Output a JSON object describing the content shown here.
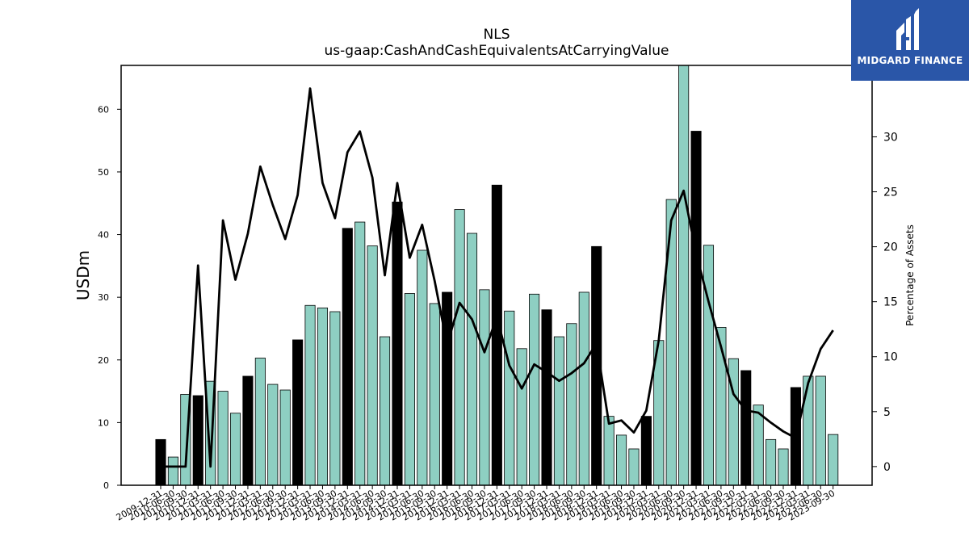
{
  "chart_data": {
    "type": "bar",
    "title": "NLS",
    "subtitle": "us-gaap:CashAndCashEquivalentsAtCarryingValue",
    "ylabel": "USDm",
    "y2label": "Percentage of Assets",
    "ylim": [
      0,
      67
    ],
    "y2lim": [
      -1.7,
      36.5
    ],
    "yticks": [
      0,
      10,
      20,
      30,
      40,
      50,
      60
    ],
    "y2ticks": [
      0,
      5,
      10,
      15,
      20,
      25,
      30
    ],
    "categories": [
      "2009-12-31",
      "2010-06-30",
      "2010-09-30",
      "2010-12-31",
      "2011-03-31",
      "2011-06-30",
      "2011-09-30",
      "2011-12-31",
      "2012-03-31",
      "2012-06-30",
      "2012-09-30",
      "2012-12-31",
      "2013-03-31",
      "2013-06-30",
      "2013-09-30",
      "2013-12-31",
      "2014-03-31",
      "2014-06-30",
      "2014-09-30",
      "2014-12-31",
      "2015-03-31",
      "2015-06-30",
      "2015-09-30",
      "2015-12-31",
      "2016-03-31",
      "2016-06-30",
      "2016-09-30",
      "2016-12-31",
      "2017-03-31",
      "2017-06-30",
      "2017-09-30",
      "2017-12-31",
      "2018-03-31",
      "2018-06-30",
      "2018-09-30",
      "2018-12-31",
      "2019-03-31",
      "2019-06-30",
      "2019-09-30",
      "2019-12-31",
      "2020-03-31",
      "2020-06-30",
      "2020-09-30",
      "2020-12-31",
      "2021-03-31",
      "2021-06-30",
      "2021-09-30",
      "2021-12-31",
      "2022-03-31",
      "2022-06-30",
      "2022-09-30",
      "2022-12-31",
      "2023-03-31",
      "2023-06-30",
      "2023-09-30"
    ],
    "series": [
      {
        "values": [
          7.3,
          4.5,
          14.5,
          14.3,
          16.6,
          15.0,
          11.5,
          17.4,
          20.3,
          16.1,
          15.2,
          23.2,
          28.7,
          28.3,
          27.7,
          41.0,
          42.0,
          38.2,
          23.7,
          45.2,
          30.6,
          37.5,
          29.0,
          30.8,
          44.0,
          40.2,
          31.2,
          47.9,
          27.8,
          21.8,
          30.5,
          28.0,
          23.7,
          25.8,
          30.8,
          38.1,
          11.0,
          8.0,
          5.8,
          11.0,
          23.1,
          45.6,
          67.0,
          56.5,
          38.3,
          25.2,
          20.2,
          18.3,
          12.8,
          7.3,
          5.8,
          15.6,
          17.4,
          17.4,
          8.1
        ],
        "highlight_color": "#000000",
        "base_color": "#8ecfc2"
      },
      {
        "name": "Percentage of Assets",
        "values": [
          0.0,
          0.0,
          0.0,
          18.3,
          0.0,
          22.4,
          17.0,
          21.2,
          27.3,
          23.8,
          20.7,
          24.7,
          34.4,
          25.8,
          22.6,
          28.6,
          30.5,
          26.3,
          17.4,
          25.8,
          19.0,
          22.0,
          16.9,
          11.1,
          14.9,
          13.4,
          10.4,
          13.6,
          9.2,
          7.1,
          9.3,
          8.6,
          7.8,
          8.5,
          9.4,
          11.2,
          3.9,
          4.2,
          3.1,
          5.1,
          11.5,
          22.4,
          25.1,
          19.4,
          15.0,
          10.9,
          6.6,
          5.1,
          4.9,
          4.0,
          3.2,
          2.6,
          7.6,
          10.7,
          12.4
        ]
      }
    ],
    "highlight_indices": [
      0,
      3,
      7,
      11,
      15,
      19,
      23,
      27,
      31,
      35,
      39,
      43,
      47,
      51
    ],
    "colors": {
      "line": "#000000",
      "bar_edge": "#000000"
    }
  },
  "logo": {
    "text": "MIDGARD FINANCE",
    "bg": "#2a56a8"
  }
}
